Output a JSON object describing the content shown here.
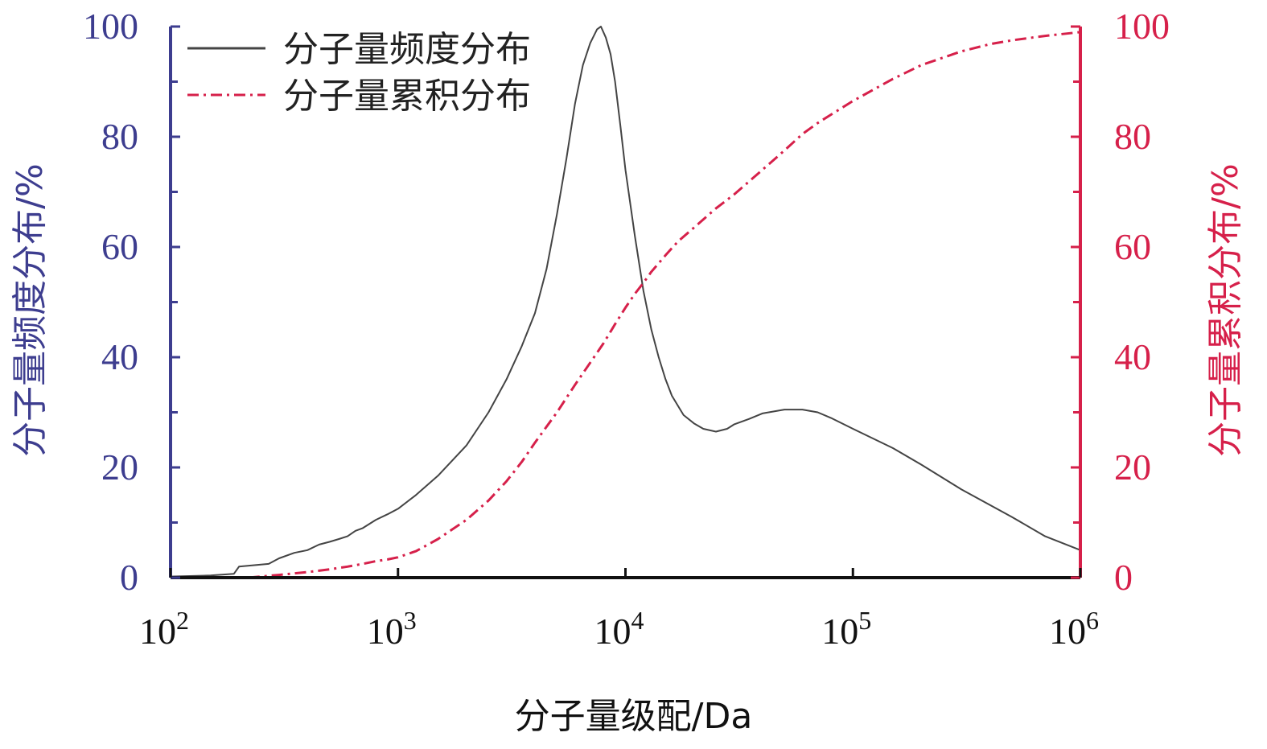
{
  "chart_data": {
    "type": "line",
    "title": "",
    "xlabel": "分子量级配/Da",
    "ylabel_left": "分子量频度分布/%",
    "ylabel_right": "分子量累积分布/%",
    "x_scale": "log",
    "xlim": [
      100,
      1000000
    ],
    "ylim_left": [
      0,
      100
    ],
    "ylim_right": [
      0,
      100
    ],
    "x_ticks": [
      {
        "base": "10",
        "exp": "2",
        "value": 100
      },
      {
        "base": "10",
        "exp": "3",
        "value": 1000
      },
      {
        "base": "10",
        "exp": "4",
        "value": 10000
      },
      {
        "base": "10",
        "exp": "5",
        "value": 100000
      },
      {
        "base": "10",
        "exp": "6",
        "value": 1000000
      }
    ],
    "y_ticks_left": [
      "0",
      "20",
      "40",
      "60",
      "80",
      "100"
    ],
    "y_ticks_right": [
      "0",
      "20",
      "40",
      "60",
      "80",
      "100"
    ],
    "grid": false,
    "legend_position": "top-left",
    "colors": {
      "left_axis": "#3d3d8f",
      "right_axis": "#d6204a",
      "frequency_line": "#444444",
      "cumulative_line": "#d6204a"
    },
    "series": [
      {
        "name": "分子量频度分布",
        "axis": "left",
        "style": "solid",
        "x": [
          100,
          150,
          190,
          200,
          270,
          300,
          350,
          400,
          450,
          500,
          550,
          600,
          650,
          700,
          800,
          900,
          1000,
          1200,
          1500,
          2000,
          2500,
          3000,
          3500,
          4000,
          4500,
          5000,
          5500,
          6000,
          6500,
          7000,
          7500,
          7800,
          8200,
          8600,
          9000,
          9500,
          10000,
          11000,
          12000,
          13000,
          14000,
          15000,
          16000,
          18000,
          20000,
          22000,
          25000,
          28000,
          30000,
          35000,
          40000,
          50000,
          60000,
          70000,
          80000,
          100000,
          150000,
          200000,
          300000,
          500000,
          700000,
          1000000
        ],
        "values": [
          0.2,
          0.4,
          0.7,
          2.0,
          2.5,
          3.5,
          4.5,
          5.0,
          6.0,
          6.5,
          7.0,
          7.5,
          8.5,
          9.0,
          10.5,
          11.5,
          12.5,
          15,
          18.5,
          24,
          30,
          36,
          42,
          48,
          56,
          66,
          76,
          86,
          93,
          97,
          99.5,
          100,
          98,
          95,
          90,
          82,
          74,
          62,
          52,
          45,
          40,
          36,
          33,
          29.5,
          28,
          27,
          26.5,
          27,
          27.8,
          28.8,
          29.8,
          30.5,
          30.5,
          30,
          29,
          27,
          23.5,
          20.5,
          16,
          11,
          7.5,
          5
        ]
      },
      {
        "name": "分子量累积分布",
        "axis": "right",
        "style": "dash-dot",
        "x": [
          220,
          300,
          400,
          500,
          600,
          700,
          800,
          900,
          1000,
          1200,
          1500,
          2000,
          2500,
          3000,
          3500,
          4000,
          5000,
          6000,
          7000,
          8000,
          9000,
          10000,
          11000,
          12000,
          13000,
          15000,
          17000,
          20000,
          25000,
          30000,
          40000,
          50000,
          60000,
          70000,
          80000,
          100000,
          150000,
          200000,
          300000,
          400000,
          500000,
          700000,
          1000000
        ],
        "values": [
          0,
          0.5,
          1.0,
          1.5,
          2.0,
          2.5,
          3.0,
          3.3,
          3.7,
          4.8,
          7,
          10.5,
          14,
          17.5,
          21,
          24.5,
          30,
          35,
          39,
          42.5,
          46,
          49,
          51.5,
          53.5,
          55.5,
          58.5,
          61,
          63.5,
          67,
          69.5,
          74,
          77.5,
          80.5,
          82.5,
          84,
          86.5,
          90.5,
          93,
          95.5,
          96.8,
          97.5,
          98.3,
          99
        ]
      }
    ]
  }
}
